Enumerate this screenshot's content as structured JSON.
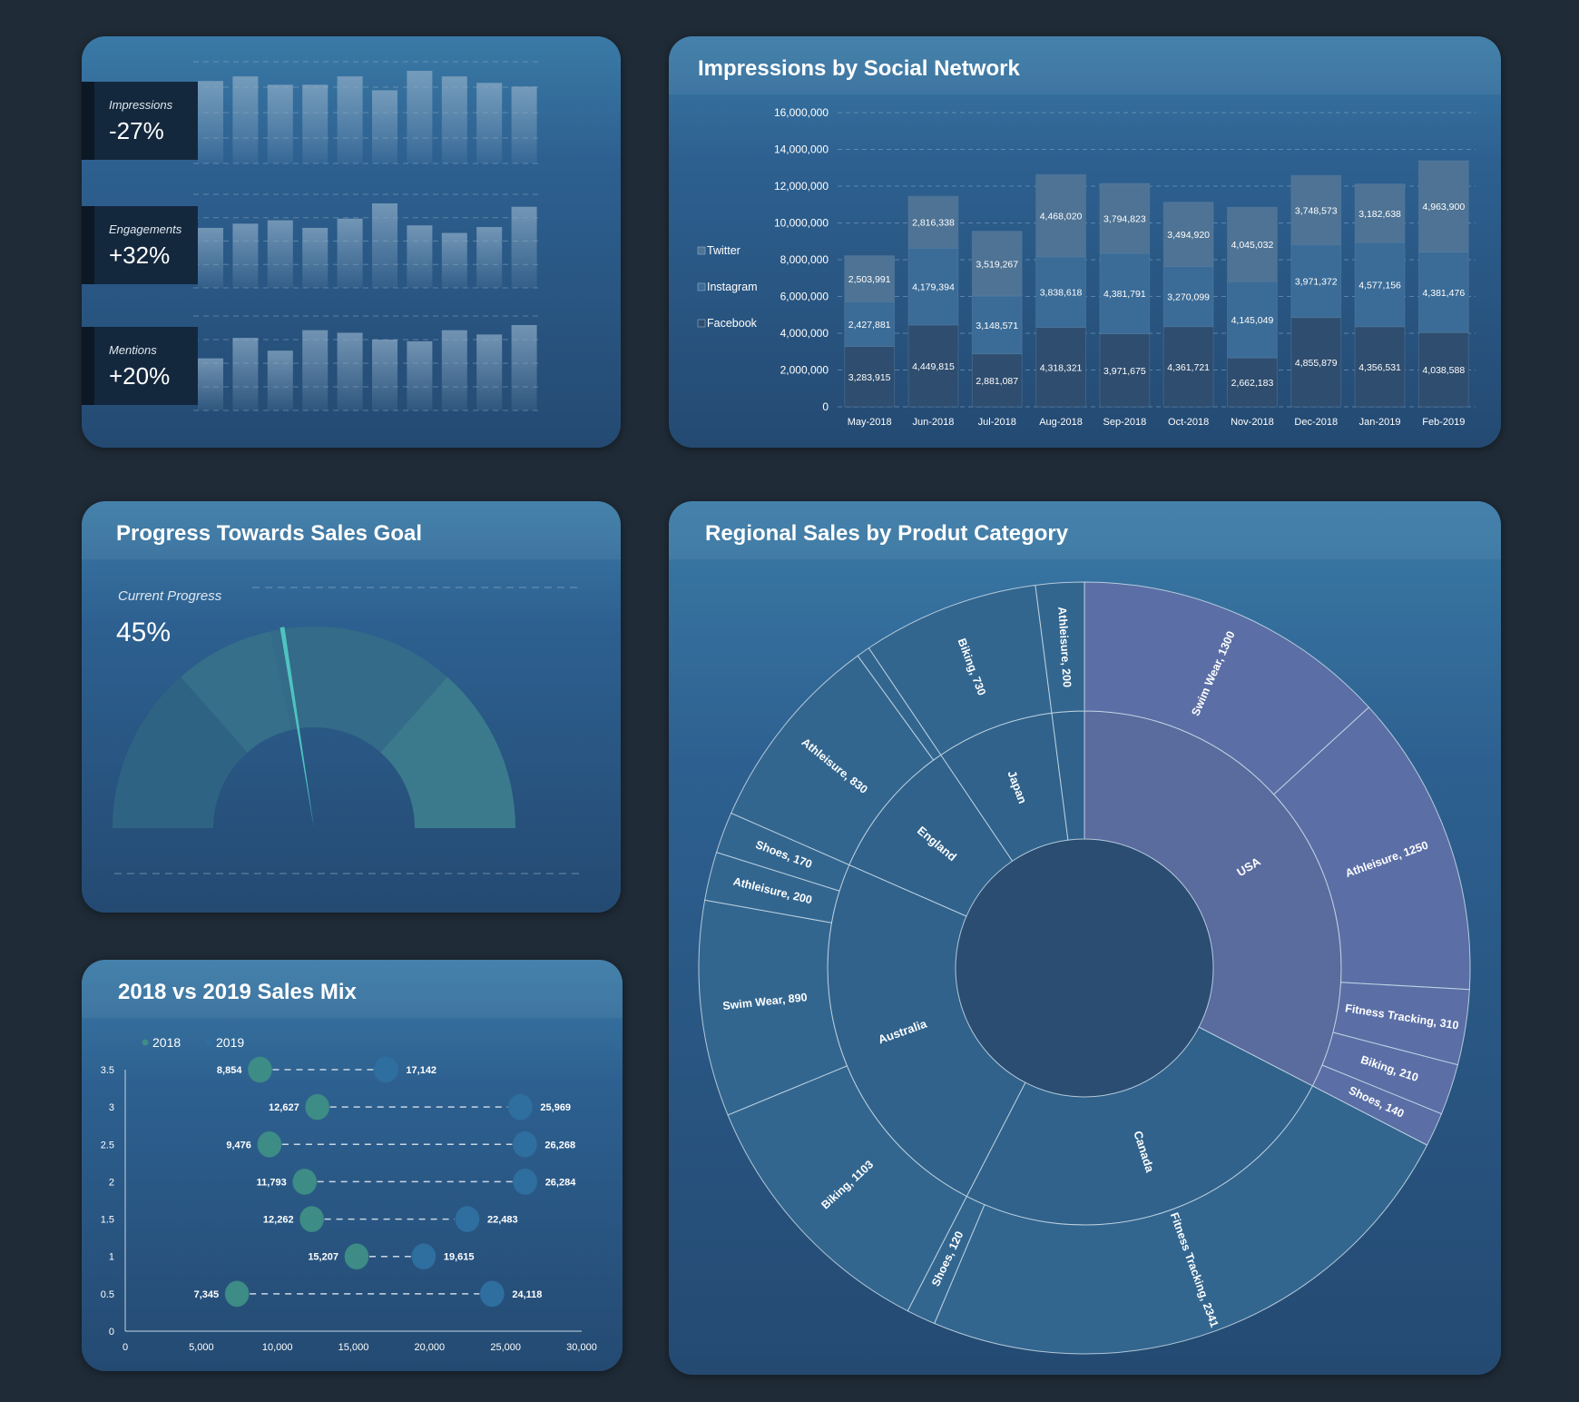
{
  "kpis": [
    {
      "label": "Impressions",
      "value": "-27%",
      "bars": [
        0.89,
        0.94,
        0.85,
        0.85,
        0.94,
        0.79,
        1.0,
        0.94,
        0.87,
        0.83
      ]
    },
    {
      "label": "Engagements",
      "value": "+32%",
      "bars": [
        0.71,
        0.76,
        0.8,
        0.71,
        0.82,
        1.0,
        0.74,
        0.65,
        0.72,
        0.96
      ]
    },
    {
      "label": "Mentions",
      "value": "+20%",
      "bars": [
        0.61,
        0.85,
        0.7,
        0.94,
        0.91,
        0.83,
        0.81,
        0.94,
        0.89,
        1.0
      ]
    }
  ],
  "impressions": {
    "title": "Impressions by Social Network",
    "chart_data": {
      "type": "bar",
      "stacked": true,
      "categories": [
        "May-2018",
        "Jun-2018",
        "Jul-2018",
        "Aug-2018",
        "Sep-2018",
        "Oct-2018",
        "Nov-2018",
        "Dec-2018",
        "Jan-2019",
        "Feb-2019"
      ],
      "series": [
        {
          "name": "Facebook",
          "color": "#2f4d6e",
          "values": [
            3283915,
            4449815,
            2881087,
            4318321,
            3971675,
            4361721,
            2662183,
            4855879,
            4356531,
            4038588
          ]
        },
        {
          "name": "Instagram",
          "color": "#3b6c97",
          "values": [
            2427881,
            4179394,
            3148571,
            3838618,
            4381791,
            3270099,
            4145049,
            3971372,
            4577156,
            4381476
          ]
        },
        {
          "name": "Twitter",
          "color": "#4e7394",
          "values": [
            2503991,
            2816338,
            3519267,
            4468020,
            3794823,
            3494920,
            4045032,
            3748573,
            3182638,
            4963900
          ]
        }
      ],
      "ylim": [
        0,
        16000000
      ],
      "yticks": [
        "0",
        "2,000,000",
        "4,000,000",
        "6,000,000",
        "8,000,000",
        "10,000,000",
        "12,000,000",
        "14,000,000",
        "16,000,000"
      ],
      "legend": "left",
      "grid": true
    }
  },
  "progress": {
    "title": "Progress Towards Sales Goal",
    "label": "Current Progress",
    "value_text": "45%",
    "value": 0.45,
    "bands": [
      0.27,
      0.43,
      0.73,
      1.0
    ],
    "band_colors": [
      "#2f6384",
      "#356f8a",
      "#346b88",
      "#3a7a8c"
    ],
    "needle_color": "#4fc3c0"
  },
  "sales_mix": {
    "title": "2018 vs 2019 Sales Mix",
    "chart_data": {
      "type": "scatter",
      "series": [
        {
          "name": "2018",
          "color": "#3e8c86",
          "points": [
            [
              8854,
              3.5
            ],
            [
              12627,
              3
            ],
            [
              9476,
              2.5
            ],
            [
              11793,
              2
            ],
            [
              12262,
              1.5
            ],
            [
              15207,
              1
            ],
            [
              7345,
              0.5
            ]
          ],
          "labels": [
            "8,854",
            "12,627",
            "9,476",
            "11,793",
            "12,262",
            "15,207",
            "7,345"
          ]
        },
        {
          "name": "2019",
          "color": "#2f6fa0",
          "points": [
            [
              17142,
              3.5
            ],
            [
              25969,
              3
            ],
            [
              26268,
              2.5
            ],
            [
              26284,
              2
            ],
            [
              22483,
              1.5
            ],
            [
              19615,
              1
            ],
            [
              24118,
              0.5
            ]
          ],
          "labels": [
            "17,142",
            "25,969",
            "26,268",
            "26,284",
            "22,483",
            "19,615",
            "24,118"
          ]
        }
      ],
      "xlim": [
        0,
        30000
      ],
      "ylim": [
        0,
        3.5
      ],
      "xticks": [
        "0",
        "5,000",
        "10,000",
        "15,000",
        "20,000",
        "25,000",
        "30,000"
      ],
      "yticks": [
        "0",
        "0.5",
        "1",
        "1.5",
        "2",
        "2.5",
        "3",
        "3.5"
      ],
      "legend": "top-left"
    }
  },
  "regional": {
    "title": "Regional Sales by Produt Category",
    "chart_data": {
      "type": "sunburst",
      "highlight_color": "#5b6fa6",
      "base_color": "#33668f",
      "regions": [
        {
          "name": "USA",
          "highlight": true,
          "children": [
            {
              "label": "Swim Wear, 1300",
              "value": 1300
            },
            {
              "label": "Athleisure, 1250",
              "value": 1250
            },
            {
              "label": "Fitness Tracking, 310",
              "value": 310
            },
            {
              "label": "Biking, 210",
              "value": 210
            },
            {
              "label": "Shoes, 140",
              "value": 140
            }
          ]
        },
        {
          "name": "Canada",
          "children": [
            {
              "label": "Fitness Tracking, 2341",
              "value": 2341
            },
            {
              "label": "Shoes, 120",
              "value": 120
            }
          ]
        },
        {
          "name": "Australia",
          "children": [
            {
              "label": "Biking, 1103",
              "value": 1103
            },
            {
              "label": "Swim Wear, 890",
              "value": 890
            },
            {
              "label": "Athleisure, 200",
              "value": 200
            },
            {
              "label": "Shoes, 170",
              "value": 170
            }
          ]
        },
        {
          "name": "England",
          "children": [
            {
              "label": "Athleisure, 830",
              "value": 830
            },
            {
              "label": "",
              "value": 55
            }
          ]
        },
        {
          "name": "Japan",
          "children": [
            {
              "label": "Biking, 730",
              "value": 730
            }
          ]
        },
        {
          "name": "",
          "children": [
            {
              "label": "Athleisure, 200",
              "value": 200
            }
          ]
        }
      ]
    }
  }
}
